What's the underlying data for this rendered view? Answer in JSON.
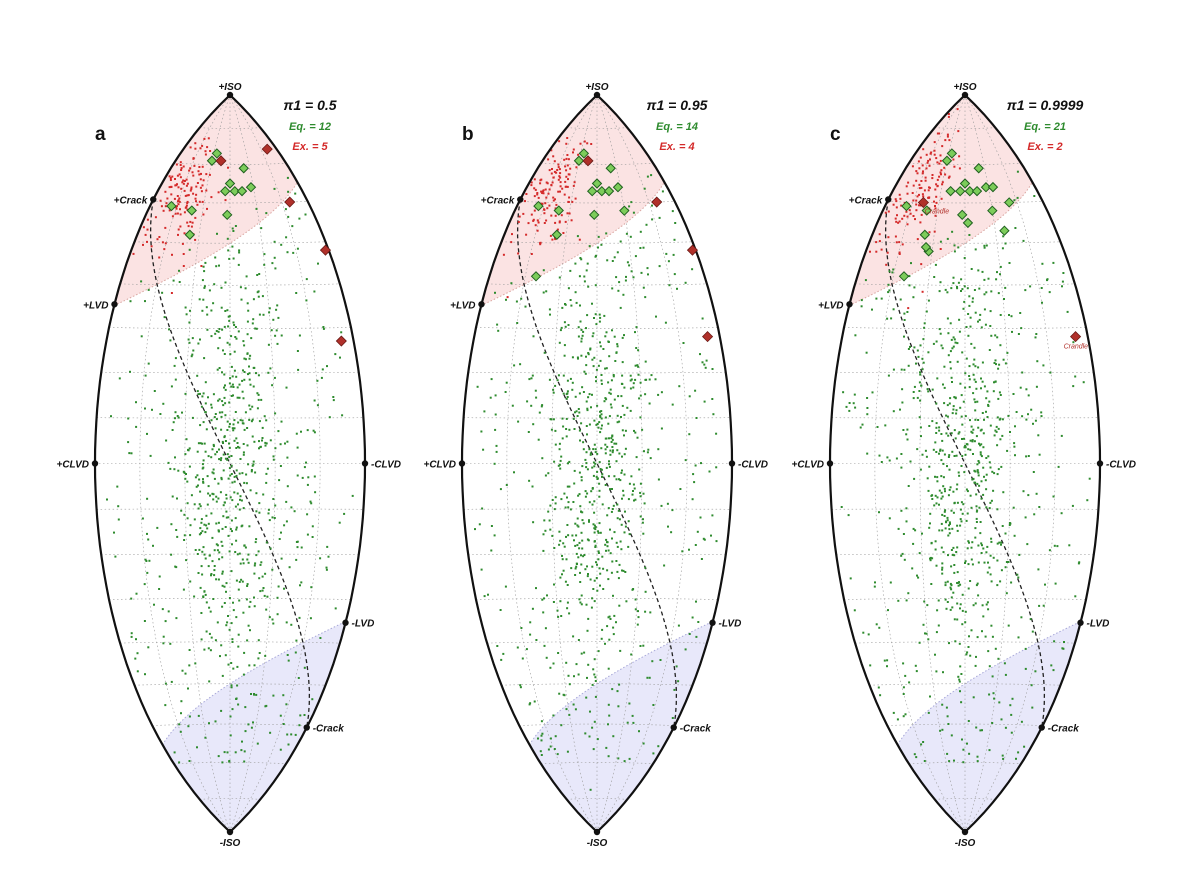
{
  "colors": {
    "equilibrium": "#2e8b2e",
    "explosion": "#d42a2a",
    "explosion_marker": "#b0302a",
    "top_region": "#fbe3e3",
    "bottom_region": "#e8e8fa",
    "outline": "#111111",
    "grid": "#9a9a9a"
  },
  "vertex_labels": {
    "iso_pos": "+ISO",
    "iso_neg": "-ISO",
    "crack_pos": "+Crack",
    "crack_neg": "-Crack",
    "lvd_pos": "+LVD",
    "lvd_neg": "-LVD",
    "clvd_pos": "+CLVD",
    "clvd_neg": "-CLVD"
  },
  "chart_data": [
    {
      "type": "scatter",
      "panel": "a",
      "projection": "source-type lune (Hammer)",
      "pi_label": "π1 = 0.5",
      "eq_label": "Eq. = 12",
      "ex_label": "Ex. = 5",
      "annotations": [],
      "explosion_events": [
        [
          24,
          74
        ],
        [
          -5,
          71
        ],
        [
          23,
          60
        ],
        [
          29,
          48
        ],
        [
          27,
          27
        ]
      ],
      "equilibrium_events": [
        [
          -8,
          73
        ],
        [
          -10,
          71
        ],
        [
          -22,
          59
        ],
        [
          0,
          65
        ],
        [
          -2,
          63
        ],
        [
          2,
          63
        ],
        [
          5,
          63
        ],
        [
          9,
          64
        ],
        [
          -14,
          58
        ],
        [
          -13,
          52
        ],
        [
          -1,
          57
        ],
        [
          7,
          69
        ]
      ]
    },
    {
      "type": "scatter",
      "panel": "b",
      "projection": "source-type lune (Hammer)",
      "pi_label": "π1 = 0.95",
      "eq_label": "Eq. = 14",
      "ex_label": "Ex. = 4",
      "annotations": [],
      "explosion_events": [
        [
          -5,
          71
        ],
        [
          23,
          60
        ],
        [
          29,
          48
        ],
        [
          27,
          28
        ]
      ],
      "equilibrium_events": [
        [
          -8,
          73
        ],
        [
          -10,
          71
        ],
        [
          -22,
          59
        ],
        [
          0,
          65
        ],
        [
          -2,
          63
        ],
        [
          2,
          63
        ],
        [
          5,
          63
        ],
        [
          9,
          64
        ],
        [
          -14,
          58
        ],
        [
          -13,
          52
        ],
        [
          -1,
          57
        ],
        [
          7,
          69
        ],
        [
          10,
          58
        ],
        [
          -17,
          42
        ]
      ]
    },
    {
      "type": "scatter",
      "panel": "c",
      "projection": "source-type lune (Hammer)",
      "pi_label": "π1 = 0.9999",
      "eq_label": "Eq. = 21",
      "ex_label": "Ex. = 2",
      "annotations": [
        "Crandle",
        "Crandle"
      ],
      "explosion_events": [
        [
          -16,
          60
        ],
        [
          27,
          28
        ]
      ],
      "equilibrium_events": [
        [
          -8,
          73
        ],
        [
          -10,
          71
        ],
        [
          -22,
          59
        ],
        [
          0,
          65
        ],
        [
          -2,
          63
        ],
        [
          2,
          63
        ],
        [
          5,
          63
        ],
        [
          9,
          64
        ],
        [
          -14,
          58
        ],
        [
          -13,
          52
        ],
        [
          -1,
          57
        ],
        [
          7,
          69
        ],
        [
          10,
          58
        ],
        [
          -17,
          42
        ],
        [
          -11,
          48
        ],
        [
          13,
          53
        ],
        [
          -6,
          63
        ],
        [
          12,
          64
        ],
        [
          1,
          55
        ],
        [
          17,
          60
        ],
        [
          -12,
          49
        ]
      ]
    }
  ]
}
